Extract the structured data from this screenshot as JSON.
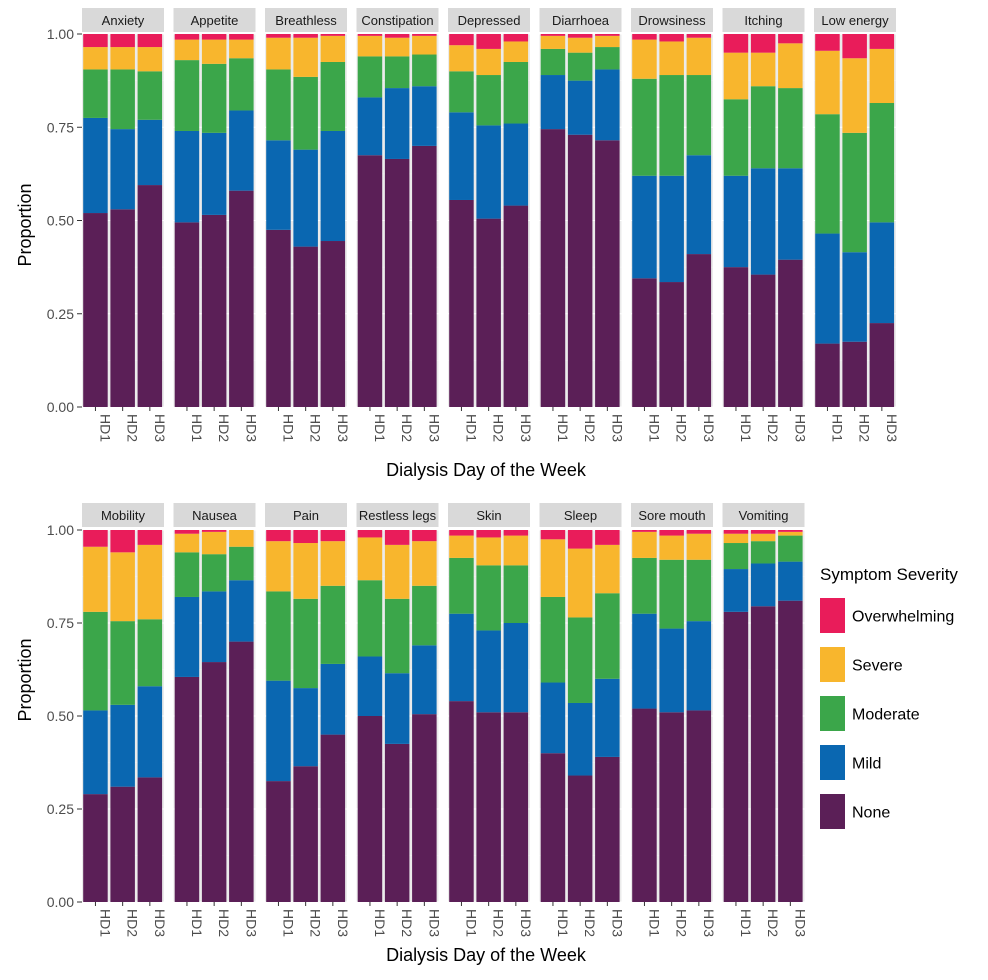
{
  "chart_data": {
    "type": "bar",
    "stacked": true,
    "normalized": true,
    "xlabel": "Dialysis Day of the Week",
    "ylabel": "Proportion",
    "ylim": [
      0,
      1
    ],
    "y_ticks": [
      "0.00",
      "0.25",
      "0.50",
      "0.75",
      "1.00"
    ],
    "categories": [
      "HD1",
      "HD2",
      "HD3"
    ],
    "legend": {
      "title": "Symptom Severity",
      "placement": "right",
      "items": [
        "Overwhelming",
        "Severe",
        "Moderate",
        "Mild",
        "None"
      ]
    },
    "severity_order_bottom_to_top": [
      "None",
      "Mild",
      "Moderate",
      "Severe",
      "Overwhelming"
    ],
    "colors": {
      "None": "#5b1f57",
      "Mild": "#0a67b1",
      "Moderate": "#3ba64a",
      "Severe": "#f8b62d",
      "Overwhelming": "#e91c5a"
    },
    "panels": [
      {
        "name": "Anxiety",
        "cumulative": [
          [
            0.52,
            0.775,
            0.905,
            0.965
          ],
          [
            0.53,
            0.745,
            0.905,
            0.965
          ],
          [
            0.595,
            0.77,
            0.9,
            0.965
          ]
        ]
      },
      {
        "name": "Appetite",
        "cumulative": [
          [
            0.495,
            0.74,
            0.93,
            0.985
          ],
          [
            0.515,
            0.735,
            0.92,
            0.985
          ],
          [
            0.58,
            0.795,
            0.935,
            0.985
          ]
        ]
      },
      {
        "name": "Breathless",
        "cumulative": [
          [
            0.475,
            0.715,
            0.905,
            0.99
          ],
          [
            0.43,
            0.69,
            0.885,
            0.99
          ],
          [
            0.445,
            0.74,
            0.925,
            0.995
          ]
        ]
      },
      {
        "name": "Constipation",
        "cumulative": [
          [
            0.675,
            0.83,
            0.94,
            0.995
          ],
          [
            0.665,
            0.855,
            0.94,
            0.99
          ],
          [
            0.7,
            0.86,
            0.945,
            0.995
          ]
        ]
      },
      {
        "name": "Depressed",
        "cumulative": [
          [
            0.555,
            0.79,
            0.9,
            0.97
          ],
          [
            0.505,
            0.755,
            0.89,
            0.96
          ],
          [
            0.54,
            0.76,
            0.925,
            0.98
          ]
        ]
      },
      {
        "name": "Diarrhoea",
        "cumulative": [
          [
            0.745,
            0.89,
            0.96,
            0.995
          ],
          [
            0.73,
            0.875,
            0.95,
            0.99
          ],
          [
            0.715,
            0.905,
            0.965,
            0.995
          ]
        ]
      },
      {
        "name": "Drowsiness",
        "cumulative": [
          [
            0.345,
            0.62,
            0.88,
            0.985
          ],
          [
            0.335,
            0.62,
            0.89,
            0.98
          ],
          [
            0.41,
            0.675,
            0.89,
            0.99
          ]
        ]
      },
      {
        "name": "Itching",
        "cumulative": [
          [
            0.375,
            0.62,
            0.825,
            0.95
          ],
          [
            0.355,
            0.64,
            0.86,
            0.95
          ],
          [
            0.395,
            0.64,
            0.855,
            0.975
          ]
        ]
      },
      {
        "name": "Low energy",
        "cumulative": [
          [
            0.17,
            0.465,
            0.785,
            0.955
          ],
          [
            0.175,
            0.415,
            0.735,
            0.935
          ],
          [
            0.225,
            0.495,
            0.815,
            0.96
          ]
        ]
      },
      {
        "name": "Mobility",
        "cumulative": [
          [
            0.29,
            0.515,
            0.78,
            0.955
          ],
          [
            0.31,
            0.53,
            0.755,
            0.94
          ],
          [
            0.335,
            0.58,
            0.76,
            0.96
          ]
        ]
      },
      {
        "name": "Nausea",
        "cumulative": [
          [
            0.605,
            0.82,
            0.94,
            0.99
          ],
          [
            0.645,
            0.835,
            0.935,
            0.995
          ],
          [
            0.7,
            0.865,
            0.955,
            1.0
          ]
        ]
      },
      {
        "name": "Pain",
        "cumulative": [
          [
            0.325,
            0.595,
            0.835,
            0.97
          ],
          [
            0.365,
            0.575,
            0.815,
            0.965
          ],
          [
            0.45,
            0.64,
            0.85,
            0.97
          ]
        ]
      },
      {
        "name": "Restless legs",
        "cumulative": [
          [
            0.5,
            0.66,
            0.865,
            0.98
          ],
          [
            0.425,
            0.615,
            0.815,
            0.96
          ],
          [
            0.505,
            0.69,
            0.85,
            0.97
          ]
        ]
      },
      {
        "name": "Skin",
        "cumulative": [
          [
            0.54,
            0.775,
            0.925,
            0.985
          ],
          [
            0.51,
            0.73,
            0.905,
            0.98
          ],
          [
            0.51,
            0.75,
            0.905,
            0.985
          ]
        ]
      },
      {
        "name": "Sleep",
        "cumulative": [
          [
            0.4,
            0.59,
            0.82,
            0.975
          ],
          [
            0.34,
            0.535,
            0.765,
            0.95
          ],
          [
            0.39,
            0.6,
            0.83,
            0.96
          ]
        ]
      },
      {
        "name": "Sore mouth",
        "cumulative": [
          [
            0.52,
            0.775,
            0.925,
            0.995
          ],
          [
            0.51,
            0.735,
            0.92,
            0.985
          ],
          [
            0.515,
            0.755,
            0.92,
            0.99
          ]
        ]
      },
      {
        "name": "Vomiting",
        "cumulative": [
          [
            0.78,
            0.895,
            0.965,
            0.99
          ],
          [
            0.795,
            0.91,
            0.97,
            0.99
          ],
          [
            0.81,
            0.915,
            0.985,
            0.995
          ]
        ]
      }
    ]
  }
}
